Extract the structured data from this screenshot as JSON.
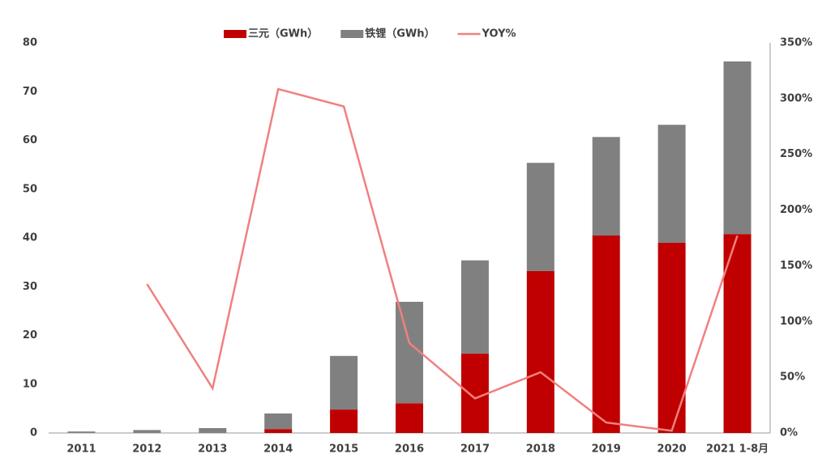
{
  "chart_data": {
    "type": "bar",
    "stacked": true,
    "categories": [
      "2011",
      "2012",
      "2013",
      "2014",
      "2015",
      "2016",
      "2017",
      "2018",
      "2019",
      "2020",
      "2021 1-8月"
    ],
    "series": [
      {
        "name": "三元（GWh）",
        "color": "#c00000",
        "values": [
          0,
          0,
          0,
          0.8,
          4.8,
          6.1,
          16.3,
          33.2,
          40.5,
          39.0,
          40.8
        ]
      },
      {
        "name": "铁锂（GWh）",
        "color": "#808080",
        "values": [
          0.3,
          0.6,
          1.0,
          3.2,
          11.0,
          20.8,
          19.1,
          22.2,
          20.2,
          24.2,
          35.4
        ]
      },
      {
        "name": "YOY%",
        "type": "line",
        "axis": "y2",
        "color": "#f08080",
        "values": [
          null,
          133.6,
          40,
          308.6,
          293,
          80.6,
          31,
          54.5,
          9.4,
          2,
          177
        ]
      }
    ],
    "ylim": [
      0,
      80
    ],
    "yticks": [
      0,
      10,
      20,
      30,
      40,
      50,
      60,
      70,
      80
    ],
    "y2lim": [
      0,
      350
    ],
    "y2ticks": [
      {
        "value": 0,
        "label": "0%"
      },
      {
        "value": 50,
        "label": "50%"
      },
      {
        "value": 100,
        "label": "100%"
      },
      {
        "value": 150,
        "label": "150%"
      },
      {
        "value": 200,
        "label": "200%"
      },
      {
        "value": 250,
        "label": "250%"
      },
      {
        "value": 300,
        "label": "300%"
      },
      {
        "value": 350,
        "label": "350%"
      }
    ],
    "legend": "top"
  }
}
